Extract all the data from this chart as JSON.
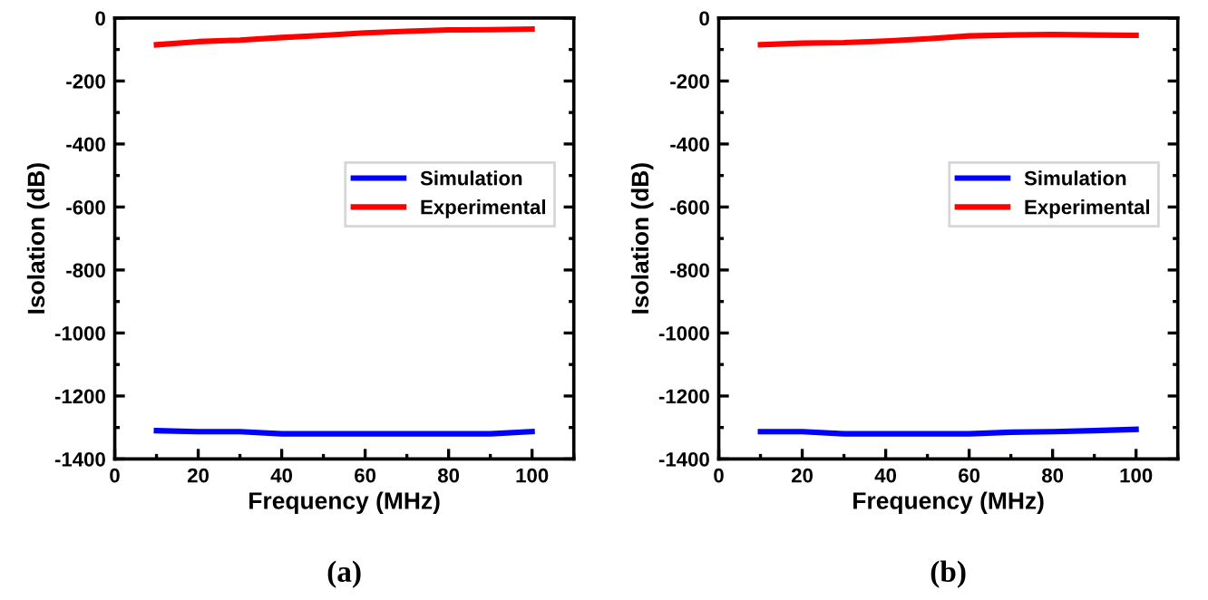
{
  "chart_data": [
    {
      "type": "line",
      "xlabel": "Frequency (MHz)",
      "ylabel": "Isolation (dB)",
      "annotations": [
        "(a)"
      ],
      "x": [
        10,
        20,
        30,
        40,
        50,
        60,
        70,
        80,
        90,
        100
      ],
      "series": [
        {
          "name": "Simulation",
          "color": "#0000ff",
          "values": [
            -1310,
            -1313,
            -1313,
            -1320,
            -1320,
            -1320,
            -1320,
            -1320,
            -1320,
            -1313
          ]
        },
        {
          "name": "Experimental",
          "color": "#ff0000",
          "values": [
            -85,
            -75,
            -70,
            -62,
            -55,
            -47,
            -42,
            -38,
            -37,
            -35
          ]
        }
      ],
      "xlim": [
        0,
        110
      ],
      "xticks": [
        0,
        20,
        40,
        60,
        80,
        100
      ],
      "ylim": [
        -1400,
        0
      ],
      "yticks": [
        -1400,
        -1200,
        -1000,
        -800,
        -600,
        -400,
        -200,
        0
      ],
      "legend": "right",
      "grid": false,
      "marker": "none",
      "line_style": "solid"
    },
    {
      "type": "line",
      "xlabel": "Frequency (MHz)",
      "ylabel": "Isolation (dB)",
      "annotations": [
        "(b)"
      ],
      "x": [
        10,
        20,
        30,
        40,
        50,
        60,
        70,
        80,
        90,
        100
      ],
      "series": [
        {
          "name": "Simulation",
          "color": "#0000ff",
          "values": [
            -1313,
            -1313,
            -1320,
            -1320,
            -1320,
            -1320,
            -1315,
            -1313,
            -1310,
            -1306
          ]
        },
        {
          "name": "Experimental",
          "color": "#ff0000",
          "values": [
            -85,
            -80,
            -78,
            -73,
            -66,
            -57,
            -54,
            -52,
            -54,
            -55
          ]
        }
      ],
      "xlim": [
        0,
        110
      ],
      "xticks": [
        0,
        20,
        40,
        60,
        80,
        100
      ],
      "ylim": [
        -1400,
        0
      ],
      "yticks": [
        -1400,
        -1200,
        -1000,
        -800,
        -600,
        -400,
        -200,
        0
      ],
      "legend": "right",
      "grid": false,
      "marker": "none",
      "line_style": "solid"
    }
  ]
}
